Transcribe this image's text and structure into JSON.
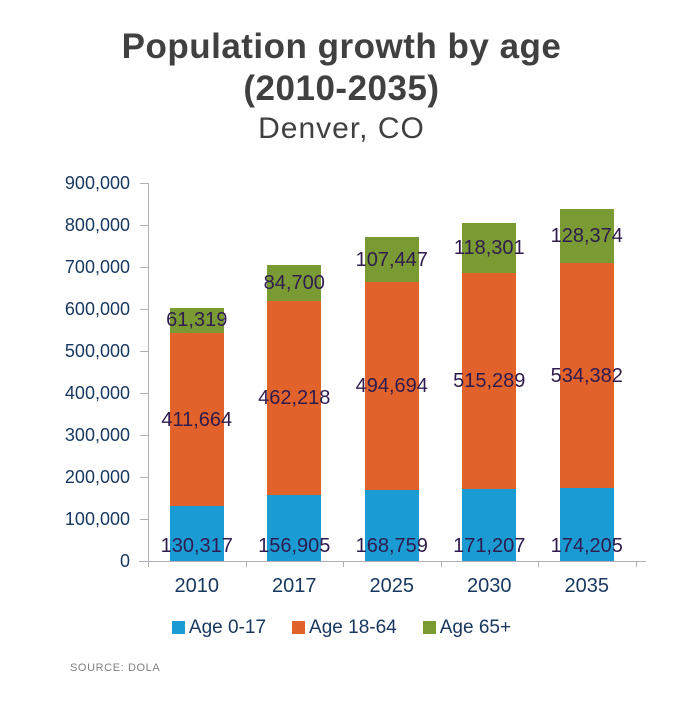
{
  "title": {
    "line1": "Population growth by age",
    "line2": "(2010-2035)",
    "subtitle": "Denver, CO"
  },
  "source": "SOURCE: DOLA",
  "colors": {
    "series_blue": "#1B9BD3",
    "series_orange": "#E2622B",
    "series_green": "#7A9A33",
    "data_label": "#2F1C4E",
    "axis_label": "#17375E",
    "title_text": "#404040",
    "axis_line": "#B5ADB8",
    "source_text": "#808080",
    "background": "#FFFFFF"
  },
  "legend": [
    {
      "label": "Age 0-17",
      "color": "#1B9BD3"
    },
    {
      "label": "Age 18-64",
      "color": "#E2622B"
    },
    {
      "label": "Age 65+",
      "color": "#7A9A33"
    }
  ],
  "chart_data": {
    "type": "bar",
    "stacked": true,
    "title": "Population growth by age (2010-2035)",
    "subtitle": "Denver, CO",
    "categories": [
      "2010",
      "2017",
      "2025",
      "2030",
      "2035"
    ],
    "series": [
      {
        "name": "Age 0-17",
        "color": "#1B9BD3",
        "values": [
          130317,
          156905,
          168759,
          171207,
          174205
        ]
      },
      {
        "name": "Age 18-64",
        "color": "#E2622B",
        "values": [
          411664,
          462218,
          494694,
          515289,
          534382
        ]
      },
      {
        "name": "Age 65+",
        "color": "#7A9A33",
        "values": [
          61319,
          84700,
          107447,
          118301,
          128374
        ]
      }
    ],
    "ylim": [
      0,
      900000
    ],
    "ytick_step": 100000,
    "ytick_labels": [
      "0",
      "100,000",
      "200,000",
      "300,000",
      "400,000",
      "500,000",
      "600,000",
      "700,000",
      "800,000",
      "900,000"
    ],
    "grid": false,
    "legend_position": "bottom",
    "data_labels": true
  }
}
